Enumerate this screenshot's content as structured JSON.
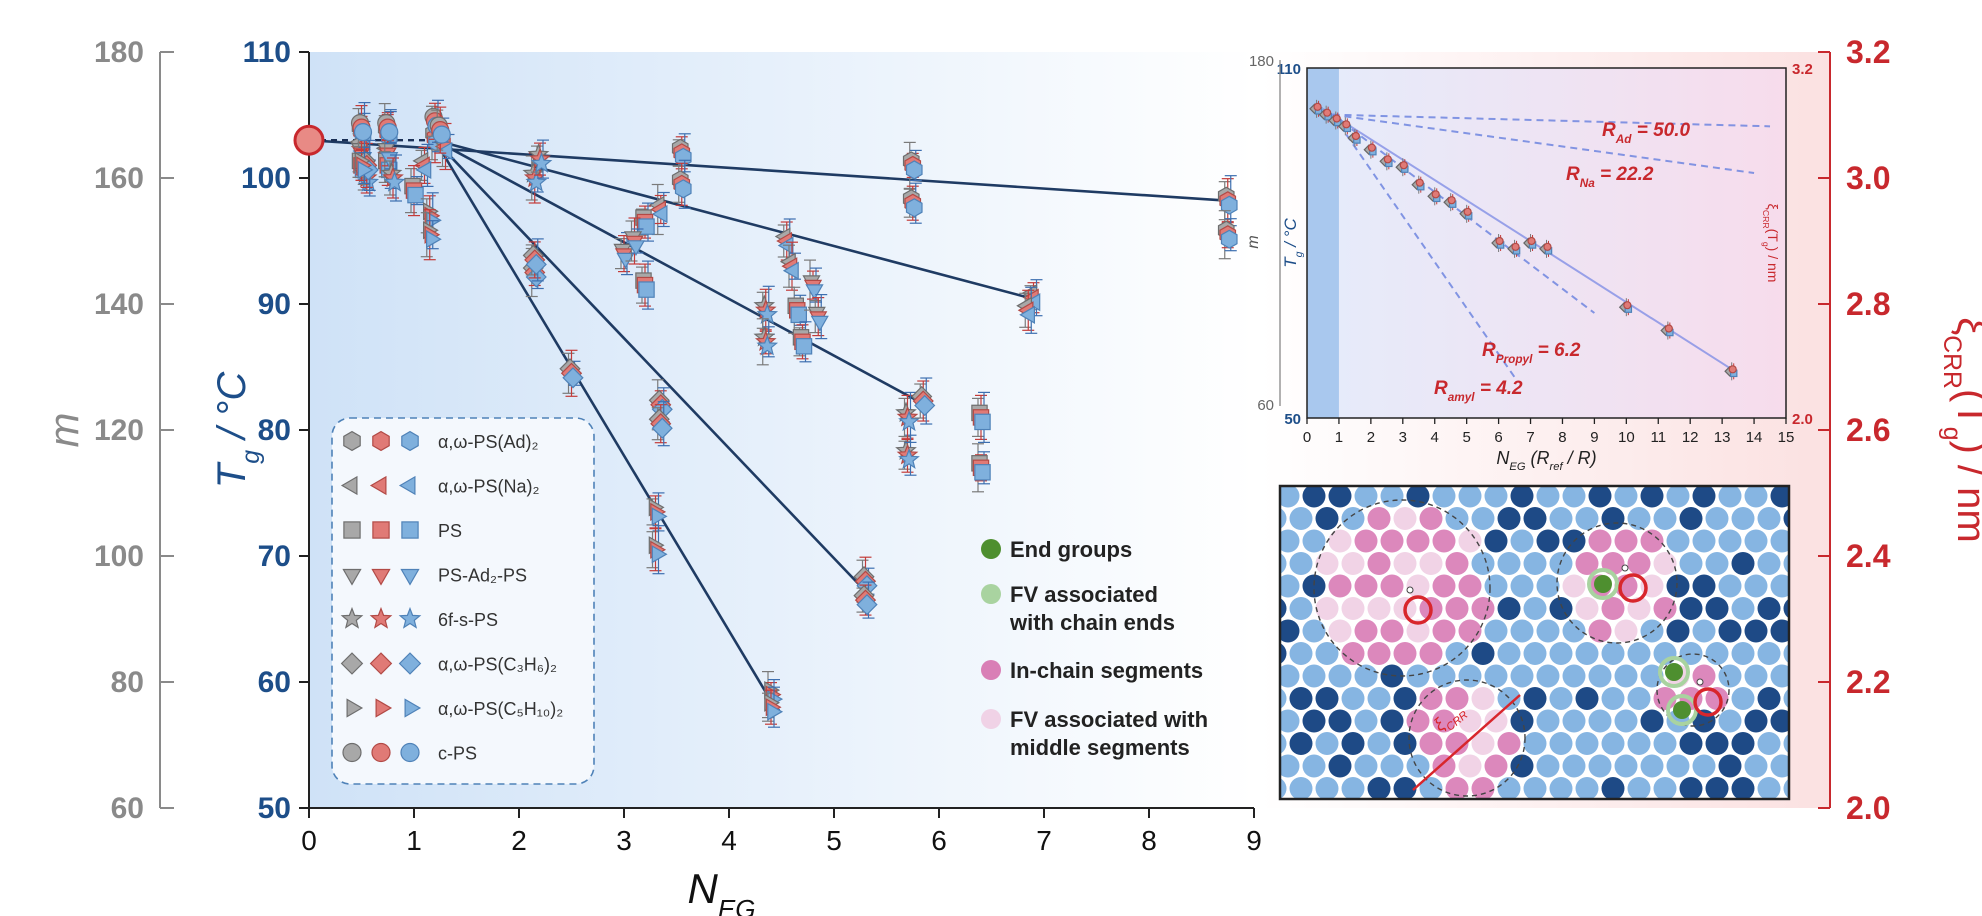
{
  "chart_data": [
    {
      "type": "scatter",
      "xlabel": "N",
      "xlabel_sub": "EG",
      "ylabel_left_outer": "m",
      "ylabel_left_inner": "T",
      "ylabel_left_inner_sub": "g",
      "ylabel_left_inner_unit": " / °C",
      "ylabel_right": "ξ",
      "ylabel_right_sub": "CRR",
      "ylabel_right_rest": "(T",
      "ylabel_right_rest_sub": "g",
      "ylabel_right_unit": ") / nm",
      "xlim": [
        0,
        9
      ],
      "x_ticks": [
        "0",
        "1",
        "2",
        "3",
        "4",
        "5",
        "6",
        "7",
        "8",
        "9"
      ],
      "m_lim": [
        60,
        180
      ],
      "m_ticks": [
        "60",
        "80",
        "100",
        "120",
        "140",
        "160",
        "180"
      ],
      "tg_lim": [
        50,
        110
      ],
      "tg_ticks": [
        "50",
        "60",
        "70",
        "80",
        "90",
        "100",
        "110"
      ],
      "xi_lim": [
        2.0,
        3.2
      ],
      "xi_ticks": [
        "2.0",
        "2.2",
        "2.4",
        "2.6",
        "2.8",
        "3.0",
        "3.2"
      ],
      "reference_point": {
        "x": 0,
        "tg": 103
      },
      "fit_lines": [
        {
          "from": [
            0,
            103
          ],
          "to": [
            8.75,
            98.2
          ]
        },
        {
          "from": [
            1.2,
            103
          ],
          "to": [
            6.9,
            90.4
          ]
        },
        {
          "from": [
            1.2,
            103
          ],
          "to": [
            5.8,
            82.3
          ]
        },
        {
          "from": [
            1.2,
            103
          ],
          "to": [
            5.3,
            67.2
          ]
        },
        {
          "from": [
            1.2,
            103
          ],
          "to": [
            4.4,
            58.5
          ]
        }
      ],
      "series": [
        {
          "name": "α,ω-PS(Ad)₂",
          "marker": "hexagon",
          "points": [
            [
              0.5,
              103.7
            ],
            [
              0.75,
              103.6
            ],
            [
              1.2,
              103.2
            ],
            [
              3.55,
              102
            ],
            [
              3.55,
              99.5
            ],
            [
              5.75,
              101
            ],
            [
              5.75,
              98
            ],
            [
              8.75,
              98.2
            ],
            [
              8.75,
              95.5
            ]
          ]
        },
        {
          "name": "α,ω-PS(Na)₂",
          "marker": "triangle-left",
          "points": [
            [
              0.5,
              102.5
            ],
            [
              0.75,
              102
            ],
            [
              1.1,
              101
            ],
            [
              1.3,
              102.5
            ],
            [
              3.35,
              97.5
            ],
            [
              4.55,
              95
            ],
            [
              4.6,
              93
            ],
            [
              6.9,
              90.5
            ],
            [
              6.85,
              89.5
            ]
          ]
        },
        {
          "name": "PS",
          "marker": "square",
          "points": [
            [
              0.5,
              101
            ],
            [
              0.75,
              101
            ],
            [
              1.0,
              99
            ],
            [
              3.2,
              96.5
            ],
            [
              3.2,
              91.5
            ],
            [
              4.65,
              89.5
            ],
            [
              4.7,
              87
            ],
            [
              6.4,
              81
            ],
            [
              6.4,
              77
            ]
          ]
        },
        {
          "name": "PS-Ad₂-PS",
          "marker": "triangle-down",
          "points": [
            [
              0.5,
              102
            ],
            [
              0.75,
              102
            ],
            [
              3.0,
              94
            ],
            [
              3.1,
              95
            ],
            [
              4.8,
              91.5
            ],
            [
              4.85,
              89
            ]
          ]
        },
        {
          "name": "6f-s-PS",
          "marker": "star",
          "points": [
            [
              0.55,
              100
            ],
            [
              0.8,
              100
            ],
            [
              2.15,
              100
            ],
            [
              2.2,
              101.5
            ],
            [
              4.35,
              89.5
            ],
            [
              4.35,
              87
            ],
            [
              5.7,
              78
            ],
            [
              5.7,
              81
            ]
          ]
        },
        {
          "name": "α,ω-PS(C₃H₆)₂",
          "marker": "diamond",
          "points": [
            [
              0.55,
              101
            ],
            [
              2.15,
              92.5
            ],
            [
              2.15,
              93.5
            ],
            [
              2.5,
              84.5
            ],
            [
              3.35,
              82
            ],
            [
              3.35,
              80.5
            ],
            [
              5.3,
              68
            ],
            [
              5.3,
              66.5
            ],
            [
              5.85,
              82.3
            ]
          ]
        },
        {
          "name": "α,ω-PS(C₅H₁₀)₂",
          "marker": "triangle-right",
          "points": [
            [
              0.5,
              101
            ],
            [
              1.15,
              97
            ],
            [
              1.15,
              95.5
            ],
            [
              3.3,
              73.5
            ],
            [
              3.3,
              70.5
            ],
            [
              4.4,
              59
            ],
            [
              4.4,
              58
            ]
          ]
        },
        {
          "name": "c-PS",
          "marker": "circle",
          "points": [
            [
              0.5,
              104
            ],
            [
              0.75,
              104
            ],
            [
              1.2,
              104.5
            ],
            [
              1.25,
              103.8
            ]
          ]
        }
      ]
    },
    {
      "type": "scatter",
      "title": "inset",
      "xlabel": "N",
      "xlabel_sub": "EG",
      "xlabel_rest": " (R",
      "xlabel_rest_sub": "ref",
      "xlabel_rest_tail": " / R)",
      "ylabel_tg": "T",
      "ylabel_tg_sub": "g",
      "ylabel_tg_unit": " / °C",
      "ylabel_m": "m",
      "ylabel_xi": "ξ",
      "ylabel_xi_sub": "CRR",
      "ylabel_xi_rest": "(T",
      "ylabel_xi_rest_sub": "g",
      "ylabel_xi_unit": ") / nm",
      "xlim": [
        0,
        15
      ],
      "x_ticks": [
        "0",
        "1",
        "2",
        "3",
        "4",
        "5",
        "6",
        "7",
        "8",
        "9",
        "10",
        "11",
        "12",
        "13",
        "14",
        "15"
      ],
      "tg_ticks": [
        "50",
        "110"
      ],
      "m_ticks": [
        "60",
        "180"
      ],
      "xi_ticks": [
        "2.0",
        "3.2"
      ],
      "annotations": [
        {
          "label": "R",
          "sub": "Ad",
          "value": " = 50.0"
        },
        {
          "label": "R",
          "sub": "Na",
          "value": " = 22.2"
        },
        {
          "label": "R",
          "sub": "Propyl",
          "value": " = 6.2"
        },
        {
          "label": "R",
          "sub": "amyl",
          "value": " = 4.2"
        }
      ],
      "points": [
        [
          0.3,
          103
        ],
        [
          0.6,
          102
        ],
        [
          0.9,
          101
        ],
        [
          1.2,
          100
        ],
        [
          1.5,
          98
        ],
        [
          2,
          96
        ],
        [
          2.5,
          94
        ],
        [
          3,
          93
        ],
        [
          3.5,
          90
        ],
        [
          4,
          88
        ],
        [
          4.5,
          87
        ],
        [
          5,
          85
        ],
        [
          6,
          80
        ],
        [
          6.5,
          79
        ],
        [
          7,
          80
        ],
        [
          7.5,
          79
        ],
        [
          10,
          69
        ],
        [
          11.3,
          65
        ],
        [
          13.3,
          58
        ]
      ]
    }
  ],
  "legend": [
    {
      "label": "α,ω-PS(Ad)₂",
      "marker": "hexagon"
    },
    {
      "label": "α,ω-PS(Na)₂",
      "marker": "triangle-left"
    },
    {
      "label": "PS",
      "marker": "square"
    },
    {
      "label": "PS-Ad₂-PS",
      "marker": "triangle-down"
    },
    {
      "label": "6f-s-PS",
      "marker": "star"
    },
    {
      "label": "α,ω-PS(C₃H₆)₂",
      "marker": "diamond"
    },
    {
      "label": "α,ω-PS(C₅H₁₀)₂",
      "marker": "triangle-right"
    },
    {
      "label": "c-PS",
      "marker": "circle"
    }
  ],
  "schematic_key": [
    {
      "label": "End groups",
      "color": "#4e8f2f"
    },
    {
      "label": "FV associated",
      "label2": "with chain ends",
      "color": "#a9d3a0"
    },
    {
      "label": "In-chain segments",
      "color": "#d97fb6"
    },
    {
      "label": "FV associated with",
      "label2": "middle segments",
      "color": "#f0d2e6"
    }
  ],
  "schematic_label": "ξ",
  "schematic_label_sub": "CRR",
  "colors": {
    "gray": "#8a8a8a",
    "navy": "#1d4e89",
    "red": "#c8282d",
    "fit": "#1f3b63",
    "marker_gray": "#a8a8a8",
    "marker_red": "#e07a76",
    "marker_blue": "#7fb0dd"
  }
}
